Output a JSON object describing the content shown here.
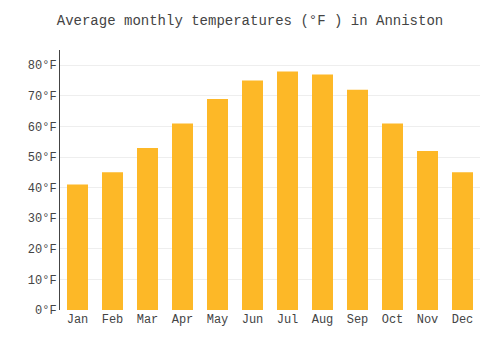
{
  "chart_data": {
    "type": "bar",
    "title": "Average monthly temperatures (°F ) in Anniston",
    "categories": [
      "Jan",
      "Feb",
      "Mar",
      "Apr",
      "May",
      "Jun",
      "Jul",
      "Aug",
      "Sep",
      "Oct",
      "Nov",
      "Dec"
    ],
    "values": [
      41,
      45,
      53,
      61,
      69,
      75,
      78,
      77,
      72,
      61,
      52,
      45
    ],
    "color": "#FDB827",
    "ylim": [
      0,
      85
    ],
    "yticks": [
      {
        "value": 0,
        "label": "0°F"
      },
      {
        "value": 10,
        "label": "10°F"
      },
      {
        "value": 20,
        "label": "20°F"
      },
      {
        "value": 30,
        "label": "30°F"
      },
      {
        "value": 40,
        "label": "40°F"
      },
      {
        "value": 50,
        "label": "50°F"
      },
      {
        "value": 60,
        "label": "60°F"
      },
      {
        "value": 70,
        "label": "70°F"
      },
      {
        "value": 80,
        "label": "80°F"
      }
    ],
    "grid": true
  }
}
